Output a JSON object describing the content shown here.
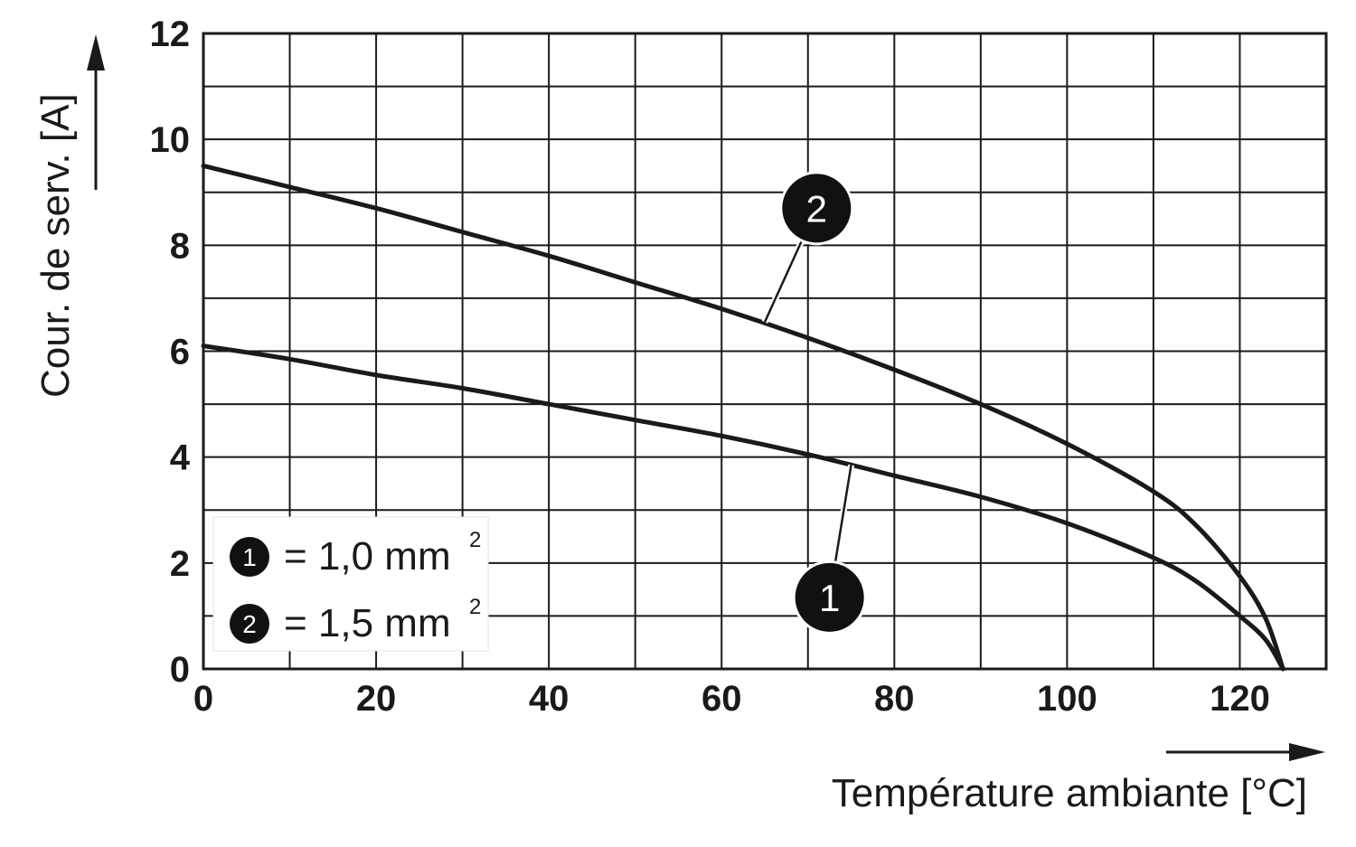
{
  "chart_data": {
    "type": "line",
    "xlabel": "Température ambiante [°C]",
    "ylabel": "Cour. de serv. [A]",
    "xlim": [
      0,
      130
    ],
    "ylim": [
      0,
      12
    ],
    "x_ticks": [
      "0",
      "20",
      "40",
      "60",
      "80",
      "100",
      "120"
    ],
    "y_ticks": [
      "0",
      "2",
      "4",
      "6",
      "8",
      "10",
      "12"
    ],
    "x_tick_values": [
      0,
      20,
      40,
      60,
      80,
      100,
      120
    ],
    "y_tick_values": [
      0,
      2,
      4,
      6,
      8,
      10,
      12
    ],
    "grid": true,
    "minor_grid_x_step": 10,
    "minor_grid_y_step": 1,
    "legend_position": "bottom-left",
    "series": [
      {
        "name": "1",
        "legend_text": "= 1,0 mm",
        "legend_sup": "2",
        "color": "#1a1a1a",
        "x": [
          0,
          10,
          20,
          30,
          40,
          50,
          60,
          70,
          80,
          90,
          100,
          110,
          115,
          120,
          123,
          125
        ],
        "y": [
          6.1,
          5.85,
          5.55,
          5.3,
          5.0,
          4.7,
          4.4,
          4.05,
          3.65,
          3.25,
          2.75,
          2.1,
          1.65,
          1.0,
          0.55,
          0
        ]
      },
      {
        "name": "2",
        "legend_text": "= 1,5 mm",
        "legend_sup": "2",
        "color": "#1a1a1a",
        "x": [
          0,
          10,
          20,
          30,
          40,
          50,
          60,
          70,
          80,
          90,
          100,
          110,
          115,
          120,
          123,
          125
        ],
        "y": [
          9.5,
          9.1,
          8.7,
          8.25,
          7.8,
          7.3,
          6.8,
          6.25,
          5.65,
          5.0,
          4.25,
          3.35,
          2.7,
          1.75,
          0.95,
          0
        ]
      }
    ],
    "callouts": [
      {
        "label": "1",
        "anchor_x": 75,
        "anchor_y": 3.85
      },
      {
        "label": "2",
        "anchor_x": 65,
        "anchor_y": 6.55
      }
    ]
  }
}
